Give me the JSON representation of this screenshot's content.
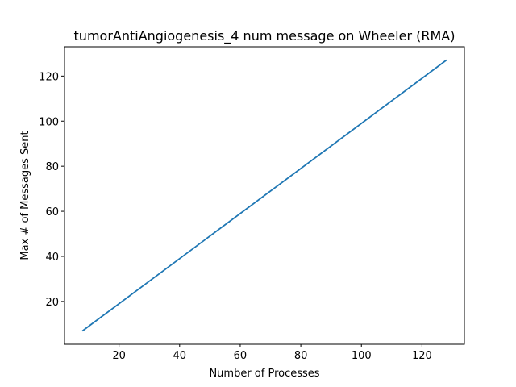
{
  "chart_data": {
    "type": "line",
    "title": "tumorAntiAngiogenesis_4 num message on Wheeler (RMA)",
    "xlabel": "Number of Processes",
    "ylabel": "Max # of Messages Sent",
    "xlim": [
      2,
      134
    ],
    "ylim": [
      1,
      133
    ],
    "xticks": [
      20,
      40,
      60,
      80,
      100,
      120
    ],
    "yticks": [
      20,
      40,
      60,
      80,
      100,
      120
    ],
    "grid": false,
    "legend": "none",
    "series": [
      {
        "color": "#1f77b4",
        "x": [
          8,
          128
        ],
        "y": [
          7,
          127
        ]
      }
    ]
  }
}
